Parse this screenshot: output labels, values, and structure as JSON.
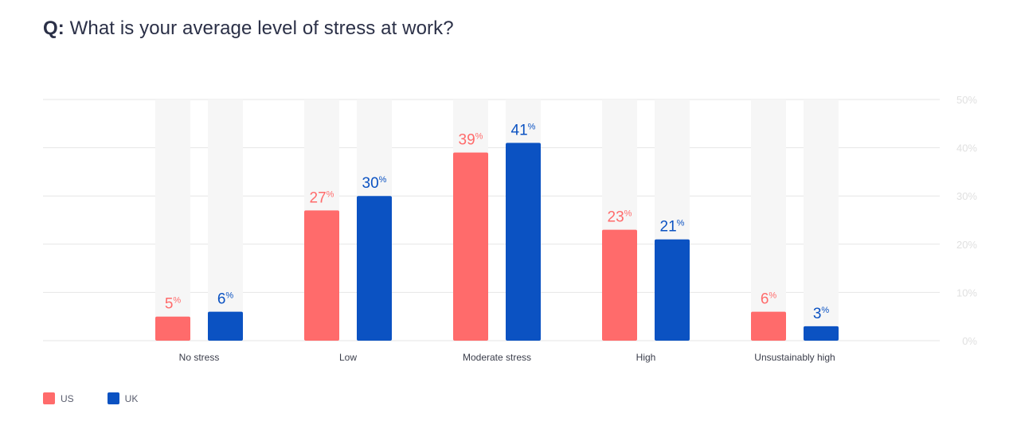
{
  "title": {
    "prefix": "Q:",
    "text": "What is your average level of stress at work?"
  },
  "colors": {
    "us": "#ff6b6b",
    "uk": "#0b52c2",
    "track": "#f6f6f6",
    "grid": "#e6e6e6",
    "tick": "#e0e0e0",
    "category": "#3a3d4a"
  },
  "legend": [
    {
      "label": "US",
      "color": "#ff6b6b"
    },
    {
      "label": "UK",
      "color": "#0b52c2"
    }
  ],
  "chart_data": {
    "type": "bar",
    "title": "What is your average level of stress at work?",
    "categories": [
      "No stress",
      "Low",
      "Moderate stress",
      "High",
      "Unsustainably high"
    ],
    "series": [
      {
        "name": "US",
        "values": [
          5,
          27,
          39,
          23,
          6
        ],
        "labels": [
          "5",
          "27",
          "39",
          "23",
          "6"
        ]
      },
      {
        "name": "UK",
        "values": [
          6,
          30,
          41,
          21,
          3
        ],
        "labels": [
          "6",
          "30",
          "41",
          "21",
          "3"
        ]
      }
    ],
    "value_suffix": "%",
    "ylim": [
      0,
      50
    ],
    "yticks": [
      "0%",
      "10%",
      "20%",
      "30%",
      "40%",
      "50%"
    ],
    "grid": true,
    "y_axis_position": "right",
    "legend_position": "bottom-left"
  }
}
